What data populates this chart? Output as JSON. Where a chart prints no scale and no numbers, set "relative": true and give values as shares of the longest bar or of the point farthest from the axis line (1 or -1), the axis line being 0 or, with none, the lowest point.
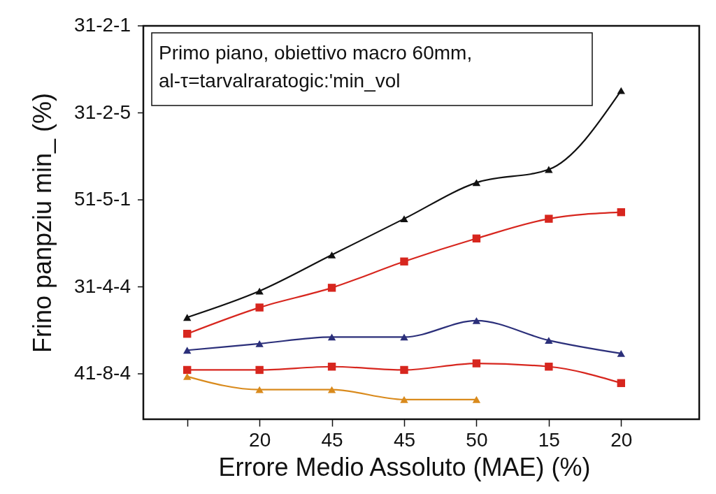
{
  "chart_data": {
    "type": "line",
    "xlabel": "Errore Medio Assoluto (MAE) (%)",
    "ylabel": "Frino panpziu  min_ (%)",
    "annotations": [
      "Primo piano, obiettivo macro 60mm,\nal-τ=tarvalraratogic:'min_vol",
      "31-2-1",
      "31-2-5",
      "51-5-1",
      "31-4-4",
      "41-8-4"
    ],
    "categories": [
      null,
      "20",
      "45",
      "45",
      "50",
      "15",
      "20"
    ],
    "relative": true,
    "grid": false,
    "line_style": "solid",
    "series": [
      {
        "color": "#111111",
        "marker": "triangle",
        "values": [
          0.31,
          0.39,
          0.5,
          0.61,
          0.72,
          0.76,
          1
        ]
      },
      {
        "color": "#d7261e",
        "marker": "square",
        "values": [
          0.26,
          0.34,
          0.4,
          0.48,
          0.55,
          0.61,
          0.63
        ]
      },
      {
        "color": "#2b2f7a",
        "marker": "triangle",
        "values": [
          0.21,
          0.23,
          0.25,
          0.25,
          0.3,
          0.24,
          0.2
        ]
      },
      {
        "color": "#d7261e",
        "marker": "square",
        "values": [
          0.15,
          0.15,
          0.16,
          0.15,
          0.17,
          0.16,
          0.11
        ]
      },
      {
        "color": "#d98a1c",
        "marker": "triangle",
        "values": [
          0.13,
          0.09,
          0.09,
          0.06,
          0.06,
          null,
          null
        ]
      }
    ]
  }
}
